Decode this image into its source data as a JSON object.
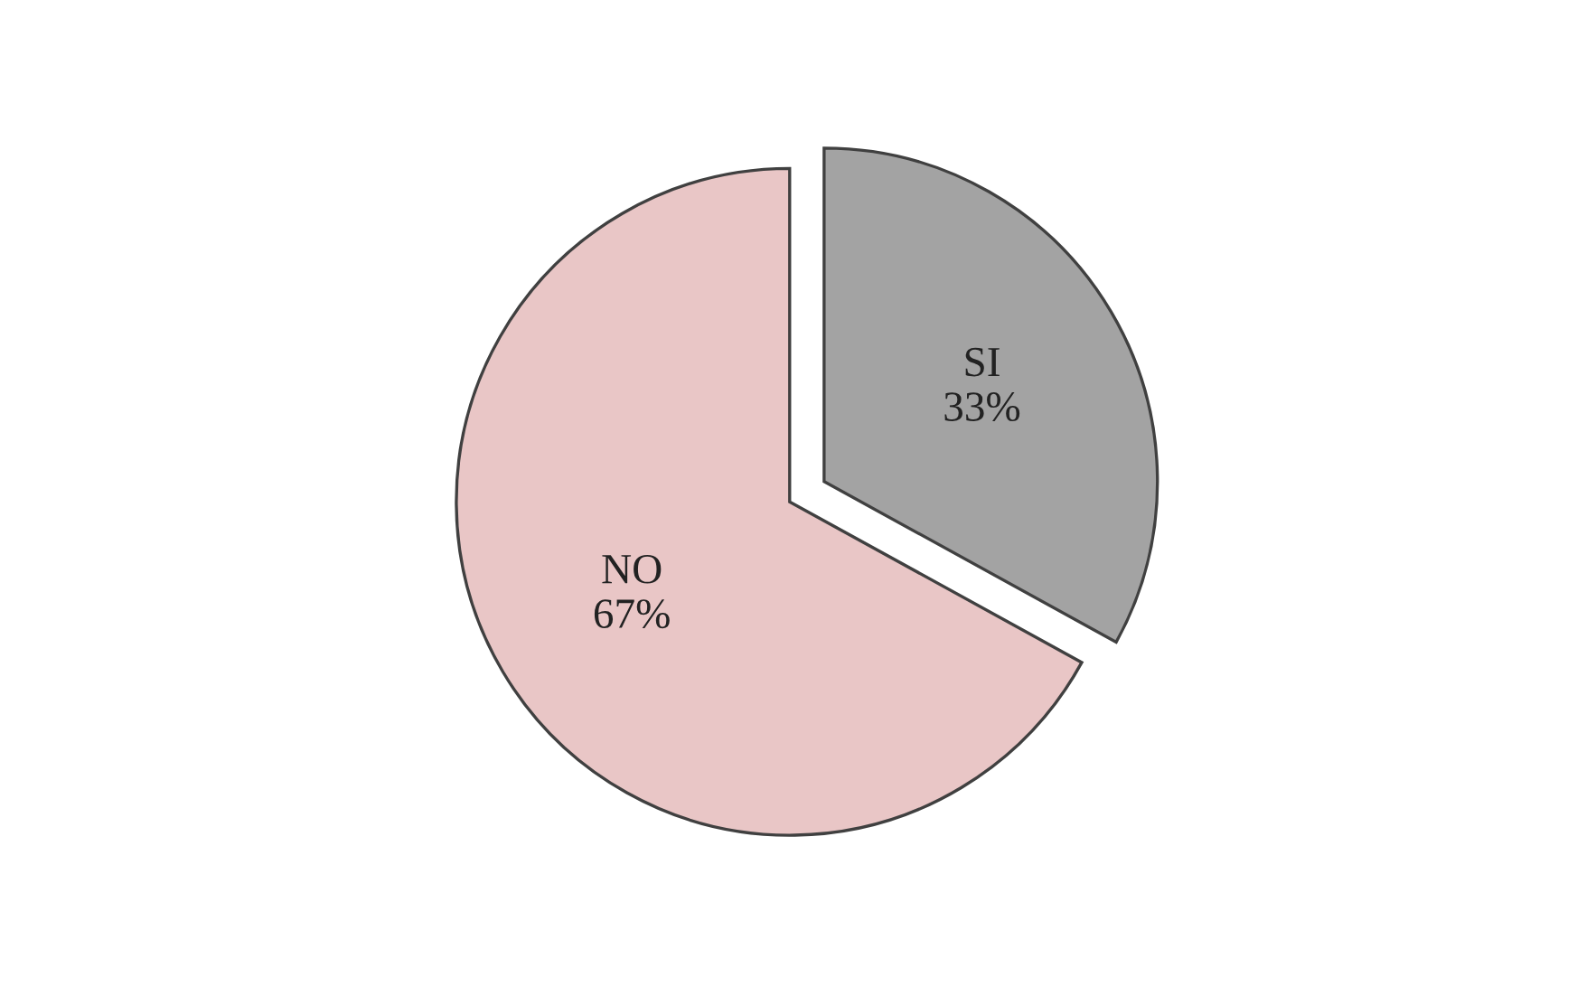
{
  "chart_data": {
    "type": "pie",
    "categories": [
      "SI",
      "NO"
    ],
    "values": [
      33,
      67
    ],
    "value_labels": [
      "33%",
      "67%"
    ],
    "colors": [
      "#a3a3a3",
      "#e9c6c6"
    ]
  }
}
